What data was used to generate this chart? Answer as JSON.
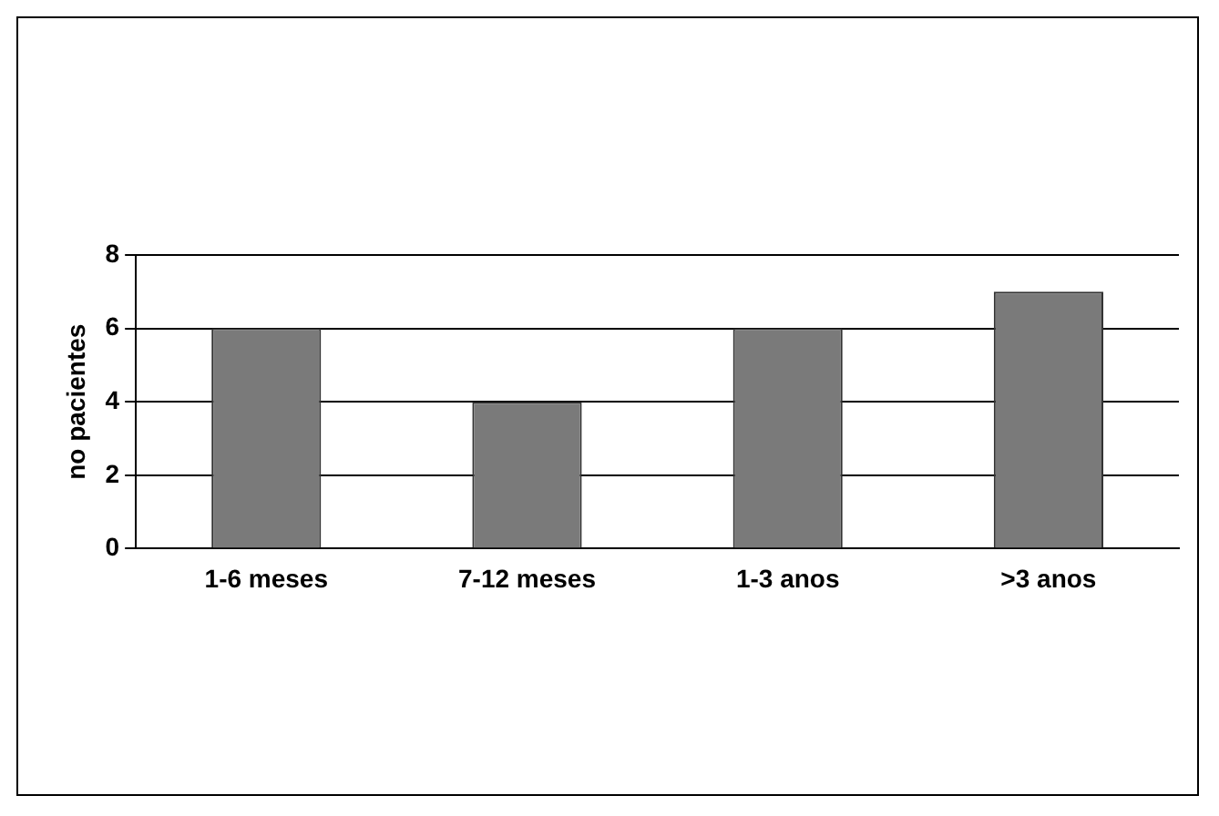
{
  "chart_data": {
    "type": "bar",
    "ylabel": "no pacientes",
    "categories": [
      "1-6 meses",
      "7-12 meses",
      "1-3 anos",
      ">3 anos"
    ],
    "values": [
      6,
      4,
      6,
      7
    ],
    "color": "#7a7a7a",
    "ylim": [
      0,
      8
    ],
    "yticks": [
      0,
      2,
      4,
      6,
      8
    ],
    "grid": "y",
    "legend": false
  }
}
